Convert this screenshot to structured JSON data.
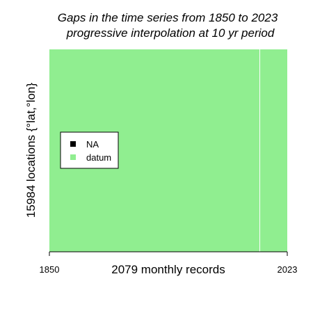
{
  "chart_data": {
    "type": "heatmap",
    "title": "Gaps in the time series from 1850 to 2023",
    "subtitle": "progressive interpolation at 10 yr period",
    "xlabel": "2079 monthly records",
    "ylabel": "15984 locations {°lat,°lon}",
    "x_ticks": [
      "1850",
      "2023"
    ],
    "xlim": [
      1850,
      2023
    ],
    "gap_lines_x": [
      2003
    ],
    "categories": [
      "NA",
      "datum"
    ],
    "legend": [
      {
        "label": "NA",
        "color": "#000000"
      },
      {
        "label": "datum",
        "color": "#90EE90"
      }
    ],
    "legend_position": "left",
    "colors": {
      "datum": "#90EE90",
      "na": "#000000",
      "gap_line": "#ffffff"
    }
  }
}
